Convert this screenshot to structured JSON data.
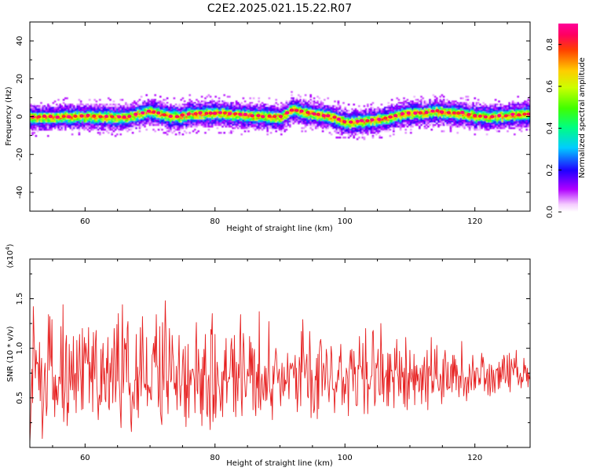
{
  "figure": {
    "title": "C2E2.2025.021.15.22.R07"
  },
  "chart_data": [
    {
      "type": "heatmap",
      "title": "C2E2.2025.021.15.22.R07",
      "xlabel": "Height of straight line (km)",
      "ylabel": "Frequency (Hz)",
      "xlim": [
        51.5,
        128.5
      ],
      "ylim": [
        -50,
        50
      ],
      "xticks": [
        "60",
        "80",
        "100",
        "120"
      ],
      "xtick_values": [
        60,
        80,
        100,
        120
      ],
      "yticks": [
        "40",
        "20",
        "0",
        "-20",
        "-40"
      ],
      "ytick_values": [
        40,
        20,
        0,
        -20,
        -40
      ],
      "colorbar": {
        "label": "Normalized spectral amplitude",
        "range": [
          0,
          0.9
        ],
        "ticks": [
          "0.0",
          "0.2",
          "0.4",
          "0.6",
          "0.8"
        ],
        "tick_values": [
          0,
          0.2,
          0.4,
          0.6,
          0.8
        ],
        "colormap": "rainbow"
      },
      "band": {
        "description_points_x": [
          52,
          56,
          60,
          64,
          66,
          68,
          70,
          72,
          74,
          76,
          80,
          84,
          88,
          90,
          92,
          94,
          96,
          98,
          100,
          102,
          104,
          106,
          108,
          110,
          112,
          114,
          116,
          118,
          120,
          122,
          124,
          126,
          128
        ],
        "center_freq": [
          0,
          0,
          0.5,
          0,
          -0.5,
          1.5,
          3,
          1,
          0,
          1.5,
          2,
          1,
          0,
          0,
          4,
          2,
          1,
          0,
          -3,
          -2.5,
          -2,
          -1,
          1,
          2,
          2,
          3,
          2,
          2,
          0.5,
          0,
          0.5,
          1,
          1.5
        ],
        "peak_amplitude": 0.9,
        "core_halfwidth_hz": 2.5,
        "outer_halfwidth_hz": 7
      }
    },
    {
      "type": "line",
      "xlabel": "Height of straight line (km)",
      "ylabel": "SNR (10 * v/v)",
      "exponent_label": "(x10",
      "exponent_sup": "4",
      "exponent_close": ")",
      "xlim": [
        51.5,
        128.5
      ],
      "ylim": [
        0,
        1.9
      ],
      "xticks": [
        "60",
        "80",
        "100",
        "120"
      ],
      "xtick_values": [
        60,
        80,
        100,
        120
      ],
      "yticks": [
        "0.5",
        "1.0",
        "1.5"
      ],
      "ytick_values": [
        0.5,
        1.0,
        1.5
      ],
      "line_color": "#e62020",
      "series": [
        {
          "values": [
            0.05,
            0.22,
            0.52,
            0.79,
            0.45,
            1.42,
            1.15,
            0.93,
            0.7,
            0.98,
            0.84,
            0.86,
            0.84,
            0.58,
            1.06,
            0.47,
            0.75,
            0.9,
            0.09,
            0.3,
            0.45,
            0.74,
            0.85,
            0.6,
            0.32,
            0.42,
            0.96,
            1.34,
            0.78,
            1.32,
            0.93,
            0.82,
            1.29,
            0.49,
            0.48,
            0.71,
            0.31,
            0.73,
            0.48,
            0.62,
            0.43,
            0.52,
            0.71,
            0.71,
            0.64,
            1.22,
            0.76,
            0.4,
            1.44,
            0.26,
            0.48,
            0.57,
            1.04,
            1.13,
            0.22,
            0.45,
            0.35,
            1.04,
            0.68,
            0.58,
            0.97,
            0.73,
            0.58,
            1.12,
            0.48,
            0.73,
            0.75,
            0.35,
            1.08,
            0.78,
            0.57,
            0.9,
            1.14,
            0.79,
            0.67,
            0.38,
            1.2,
            0.39,
            0.91,
            1.11,
            0.85,
            1.05,
            0.96,
            0.88,
            0.84,
            1.21,
            0.45,
            0.86,
            0.71,
            0.66,
            1.02,
            0.36,
            1.16,
            0.84,
            0.69,
            1.07,
            1.18,
            0.62,
            0.49,
            0.28,
            0.49,
            0.53,
            0.43,
            0.99,
            0.46,
            0.9,
            1.05,
            0.64,
            0.8,
            0.49,
            0.46,
            0.9,
            0.75,
            1.11,
            0.41,
            0.38,
            0.85,
            0.66,
            0.87,
            1.0,
            0.45,
            0.74,
            1.2,
            0.99,
            0.46,
            0.64,
            1.24,
            0.67,
            1.35,
            0.7,
            0.57,
            0.36,
            0.2,
            0.93,
            1.44,
            0.55,
            0.69,
            1.1,
            0.99,
            1.05,
            0.66,
            1.2,
            1.27,
            0.63,
            0.53,
            0.65,
            0.28,
            0.16,
            0.46,
            0.56,
            0.46,
            0.39,
            0.68,
            0.68,
            1.14,
            0.38,
            0.81,
            0.3,
            0.7,
            0.79,
            1.21,
            0.52,
            0.76,
            1.32,
            0.96,
            0.66,
            0.6,
            0.64,
            0.58,
            1.11,
            0.42,
            0.63,
            0.6,
            0.55,
            0.61,
            0.49,
            0.48,
            0.93,
            0.95,
            1.05,
            0.86,
            1.12,
            0.81,
            1.34,
            0.83,
            0.81,
            0.41,
            0.53,
            1.22,
            0.36,
            0.29,
            0.23,
            1.26,
            0.75,
            0.58,
            1.04,
            1.48,
            1.15,
            0.51,
            0.67,
            0.34,
            0.76,
            1.2,
            0.87,
            0.66,
            0.69,
            1.13,
            0.95,
            0.86,
            0.59,
            0.65,
            0.53,
            0.82,
            0.38,
            0.73,
            0.85,
            1.13,
            0.59,
            0.42,
            0.62,
            0.63,
            0.86,
            0.99,
            0.72,
            0.31,
            1.02,
            0.21,
            0.63,
            0.5,
            1.04,
            0.3,
            0.62,
            0.78,
            0.63,
            0.74,
            0.79,
            0.79,
            0.74,
            0.68,
            0.35,
            1.0,
            1.26,
            0.58,
            0.54,
            0.99,
            0.78,
            0.73,
            0.34,
            0.79,
            0.22,
            0.91,
            0.38,
            0.99,
            0.73,
            1.14,
            0.68,
            0.35,
            0.31,
            0.67,
            0.73,
            0.4,
            0.18,
            1.19,
            1.14,
            1.35,
            0.26,
            0.53,
            0.34,
            1.14,
            0.3,
            0.51,
            0.86,
            0.78,
            0.64,
            0.61,
            0.52,
            0.37,
            0.48,
            0.76,
            0.31,
            0.77,
            0.68,
            0.98,
            0.67,
            1.1,
            0.45,
            0.66,
            0.66,
            0.71,
            0.69,
            0.81,
            1.02,
            1.1,
            0.71,
            0.99,
            0.36,
            1.13,
            0.68,
            0.31,
            0.86,
            0.65,
            0.47,
            0.84,
            0.7,
            1.1,
            1.34,
            0.5,
            0.32,
            0.76,
            1.15,
            1.0,
            0.68,
            0.51,
            0.52,
            0.66,
            0.79,
            0.72,
            0.72,
            1.12,
            0.65,
            1.06,
            0.73,
            1.0,
            0.38,
            0.91,
            0.99,
            0.44,
            0.32,
            0.76,
            0.6,
            0.84,
            0.4,
            1.37,
            0.51,
            0.38,
            0.67,
            0.74,
            0.56,
            0.48,
            0.66,
            0.82,
            0.47,
            0.8,
            0.48,
            0.61,
            0.79,
            1.27,
            0.58,
            0.54,
            0.42,
            0.59,
            0.28,
            0.82,
            0.64,
            0.79,
            0.89,
            1.0,
            0.93,
            0.75,
            0.65,
            0.74,
            0.79,
            0.58,
            0.42,
            0.68,
            0.85,
            0.57,
            0.52,
            0.81,
            0.57,
            0.68,
            0.64,
            0.66,
            0.95,
            0.71,
            0.49,
            0.79,
            0.85,
            0.79,
            0.81,
            0.85,
            0.81,
            0.7,
            0.78,
            0.93,
            0.49,
            0.8,
            0.36,
            0.51,
            0.62,
            0.91,
            0.82,
            0.42,
            1.17,
            0.76,
            1.29,
            1.0,
            0.85,
            0.7,
            0.77,
            0.87,
            0.94,
            0.52,
            0.5,
            0.7,
            1.17,
            0.92,
            0.3,
            0.78,
            0.65,
            0.48,
            0.35,
            0.39,
            0.72,
            0.68,
            0.9,
            0.29,
            0.94,
            0.39,
            0.96,
            1.06,
            1.09,
            1.01,
            0.52,
            0.76,
            0.85,
            0.8,
            0.58,
            0.68,
            0.99,
            0.92,
            0.69,
            0.58,
            0.46,
            0.66,
            0.73,
            1.02,
            0.93,
            0.6,
            0.58,
            0.59,
            0.35,
            0.58,
            0.66,
            0.56,
            0.68,
            0.78,
            0.68,
            0.92,
            0.86,
            1.04,
            0.76,
            0.43,
            0.66,
            0.71,
            0.45,
            0.64,
            0.54,
            0.8,
            0.76,
            0.69,
            0.32,
            0.76,
            0.87,
            0.98,
            0.79,
            0.99,
            0.73,
            0.57,
            0.97,
            0.74,
            0.81,
            0.43,
            0.42,
            0.43,
            0.83,
            0.79,
            1.12,
            0.82,
            0.82,
            0.79,
            0.69,
            1.05,
            0.64,
            0.34,
            0.71,
            1.2,
            0.69,
            0.86,
            0.34,
            0.64,
            0.59,
            0.59,
            0.67,
            0.72,
            0.72,
            1.16,
            1.18,
            0.84,
            0.42,
            0.47,
            0.85,
            0.8,
            0.85,
            0.99,
            0.59,
            0.53,
            0.53,
            1.25,
            0.95,
            0.54,
            0.94,
            0.46,
            0.69,
            0.71,
            0.72,
            0.78,
            0.42,
            0.95,
            0.42,
            0.94,
            0.56,
            0.94,
            0.77,
            0.78,
            0.66,
            0.71,
            0.4,
            1.0,
            0.78,
            0.81,
            1.09,
            0.75,
            0.71,
            0.52,
            0.97,
            0.6,
            0.55,
            0.91,
            0.71,
            0.76,
            0.44,
            0.8,
            0.41,
            1.11,
            0.86,
            0.38,
            0.61,
            0.75,
            0.49,
            0.98,
            0.71,
            0.66,
            0.79,
            0.72,
            0.58,
            0.94,
            0.43,
            0.82,
            0.63,
            0.83,
            0.67,
            0.74,
            0.56,
            0.58,
            0.8,
            0.73,
            0.44,
            0.83,
            0.58,
            0.8,
            0.91,
            0.66,
            0.46,
            0.76,
            0.98,
            0.38,
            0.79,
            0.82,
            0.72,
            0.73,
            1.11,
            0.55,
            0.67,
            0.56,
            0.67,
            0.99,
            0.76,
            0.69,
            1.03,
            0.69,
            0.61,
            0.57,
            0.59,
            0.74,
            0.71,
            0.44,
            0.61,
            0.89,
            0.51,
            0.9,
            0.98,
            0.86,
            0.63,
            0.58,
            0.86,
            0.59,
            0.61,
            0.6,
            0.81,
            0.84,
            0.56,
            0.93,
            0.65,
            0.93,
            0.72,
            0.89,
            0.58,
            0.83,
            0.74,
            0.71,
            0.51,
            0.72,
            0.72,
            0.6,
            1.07,
            0.78,
            0.71,
            0.52,
            0.61,
            0.7,
            0.71,
            0.47,
            0.61,
            0.71,
            0.55,
            0.84,
            0.77,
            0.66,
            0.58,
            0.76,
            0.93,
            0.78,
            0.58,
            0.77,
            0.6,
            0.8,
            0.8,
            0.8,
            0.72,
            0.63,
            0.7,
            0.64,
            0.83,
            0.95,
            0.81,
            0.91,
            0.84,
            0.57,
            0.7,
            0.64,
            0.73,
            0.79,
            0.53,
            0.67,
            0.84,
            0.52,
            0.61,
            0.83,
            0.76,
            0.56,
            0.78,
            0.67,
            0.55,
            0.73,
            0.79,
            0.78,
            0.8,
            0.59,
            0.86,
            0.6,
            0.81,
            0.66,
            0.76,
            0.89,
            0.69,
            0.93,
            0.89,
            0.65,
            0.68,
            0.73,
            0.93,
            0.67,
            0.61,
            0.95,
            0.56,
            0.76,
            0.89,
            0.81,
            0.79,
            0.73,
            0.9,
            0.8,
            0.81,
            0.98,
            0.71,
            0.81,
            0.63,
            0.67,
            0.72,
            0.75,
            0.6,
            0.71,
            0.66,
            0.68,
            0.9,
            0.75,
            0.83,
            0.79,
            0.67,
            0.8,
            0.61,
            0.75,
            0.69,
            0.72
          ]
        }
      ]
    }
  ]
}
